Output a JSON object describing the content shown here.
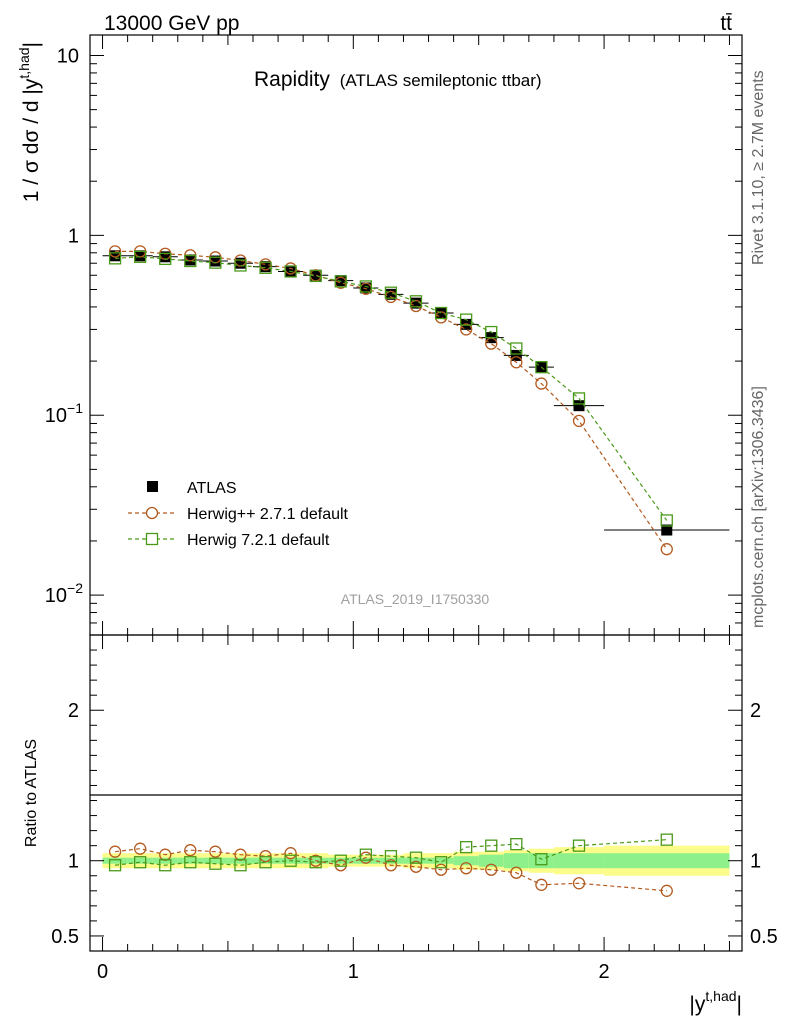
{
  "header": {
    "energy_label": "13000 GeV pp",
    "process_label": "tt̄"
  },
  "side_labels": {
    "rivet": "Rivet 3.1.10, ≥ 2.7M events",
    "mcplots": "mcplots.cern.ch [arXiv:1306.3436]"
  },
  "chart_data": [
    {
      "type": "scatter",
      "title": "Rapidity",
      "subtitle": "(ATLAS semileptonic ttbar)",
      "analysis_id": "ATLAS_2019_I1750330",
      "xlabel": "|y^{t,had}|",
      "xlabel_main": "|y",
      "xlabel_sup": "t,had",
      "xlabel_end": "|",
      "ylabel": "1 / σ dσ / d |y^{t,had}|",
      "ylabel_main": "1 / σ dσ / d |y",
      "ylabel_sup": "t,had",
      "ylabel_end": "|",
      "yscale": "log",
      "xlim": [
        -0.05,
        2.55
      ],
      "ylim": [
        0.006,
        13
      ],
      "x_ticks": [
        0,
        1,
        2
      ],
      "x_tick_labels": [
        "0",
        "1",
        "2"
      ],
      "y_ticks": [
        0.01,
        0.1,
        1,
        10
      ],
      "y_tick_labels": [
        {
          "base": "10",
          "exp": "−2"
        },
        {
          "base": "10",
          "exp": "−1"
        },
        {
          "base": "1",
          "exp": ""
        },
        {
          "base": "10",
          "exp": ""
        }
      ],
      "legend_position": "bottom-left",
      "x": [
        0.05,
        0.15,
        0.25,
        0.35,
        0.45,
        0.55,
        0.65,
        0.75,
        0.85,
        0.95,
        1.05,
        1.15,
        1.25,
        1.35,
        1.45,
        1.55,
        1.65,
        1.75,
        1.9,
        2.25
      ],
      "x_errors": [
        0.05,
        0.05,
        0.05,
        0.05,
        0.05,
        0.05,
        0.05,
        0.05,
        0.05,
        0.05,
        0.05,
        0.05,
        0.05,
        0.05,
        0.05,
        0.05,
        0.05,
        0.05,
        0.1,
        0.25
      ],
      "series": [
        {
          "name": "ATLAS",
          "marker": "filled-square",
          "color": "#000000",
          "values": [
            0.77,
            0.77,
            0.76,
            0.73,
            0.72,
            0.7,
            0.67,
            0.63,
            0.6,
            0.56,
            0.51,
            0.47,
            0.42,
            0.37,
            0.32,
            0.27,
            0.215,
            0.185,
            0.113,
            0.023
          ]
        },
        {
          "name": "Herwig++ 2.7.1 default",
          "marker": "open-circle",
          "color": "#b35a1f",
          "values": [
            0.815,
            0.815,
            0.79,
            0.775,
            0.755,
            0.725,
            0.69,
            0.655,
            0.6,
            0.545,
            0.505,
            0.455,
            0.405,
            0.35,
            0.3,
            0.25,
            0.197,
            0.15,
            0.093,
            0.018
          ]
        },
        {
          "name": "Herwig 7.2.1 default",
          "marker": "open-square",
          "color": "#4a9a1a",
          "values": [
            0.745,
            0.76,
            0.74,
            0.72,
            0.705,
            0.68,
            0.66,
            0.63,
            0.595,
            0.555,
            0.52,
            0.48,
            0.43,
            0.37,
            0.34,
            0.29,
            0.235,
            0.185,
            0.124,
            0.026
          ]
        }
      ]
    },
    {
      "type": "scatter",
      "ylabel": "Ratio to ATLAS",
      "ylim": [
        0.4,
        2.5
      ],
      "xlim": [
        -0.05,
        2.55
      ],
      "y_ticks": [
        0.5,
        1,
        2
      ],
      "y_tick_labels": [
        "0.5",
        "1",
        "2"
      ],
      "bands": {
        "x_edges": [
          0.0,
          0.1,
          0.2,
          0.3,
          0.4,
          0.5,
          0.6,
          0.7,
          0.8,
          0.9,
          1.0,
          1.1,
          1.2,
          1.3,
          1.4,
          1.5,
          1.6,
          1.7,
          1.8,
          2.0,
          2.5
        ],
        "outer_halfwidth": [
          0.05,
          0.05,
          0.05,
          0.05,
          0.05,
          0.05,
          0.05,
          0.05,
          0.05,
          0.04,
          0.04,
          0.04,
          0.05,
          0.05,
          0.06,
          0.06,
          0.07,
          0.08,
          0.09,
          0.1
        ],
        "inner_halfwidth": [
          0.02,
          0.02,
          0.02,
          0.02,
          0.02,
          0.02,
          0.02,
          0.02,
          0.02,
          0.02,
          0.02,
          0.02,
          0.02,
          0.02,
          0.03,
          0.04,
          0.05,
          0.05,
          0.05,
          0.05
        ],
        "outer_color": "#fcfc8a",
        "inner_color": "#8ef08a"
      },
      "series": [
        {
          "name": "Herwig++ 2.7.1 default",
          "color": "#b35a1f",
          "values": [
            1.06,
            1.08,
            1.04,
            1.07,
            1.06,
            1.04,
            1.03,
            1.05,
            1.0,
            0.97,
            1.02,
            0.97,
            0.96,
            0.94,
            0.95,
            0.94,
            0.92,
            0.84,
            0.85,
            0.8
          ]
        },
        {
          "name": "Herwig 7.2.1 default",
          "color": "#4a9a1a",
          "values": [
            0.97,
            0.99,
            0.97,
            0.99,
            0.98,
            0.97,
            0.99,
            1.0,
            0.99,
            1.0,
            1.04,
            1.03,
            1.02,
            0.99,
            1.09,
            1.1,
            1.11,
            1.01,
            1.1,
            1.14
          ]
        }
      ]
    }
  ]
}
